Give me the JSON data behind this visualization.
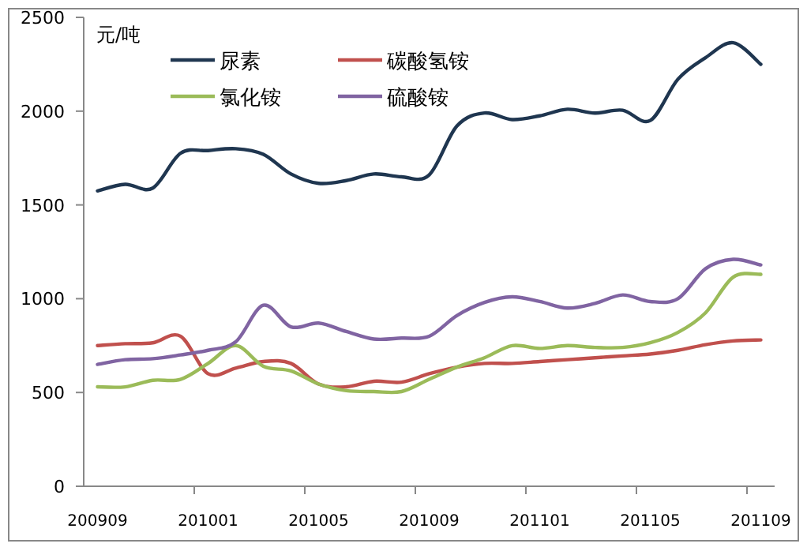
{
  "chart_data": {
    "type": "line",
    "ylabel": "元/吨",
    "categories": [
      "200909",
      null,
      null,
      null,
      "201001",
      null,
      null,
      null,
      "201005",
      null,
      null,
      null,
      "201009",
      null,
      null,
      null,
      "201101",
      null,
      null,
      null,
      "201105",
      null,
      null,
      null,
      "201109"
    ],
    "series": [
      {
        "name": "尿素",
        "color": "#1f3650",
        "values": [
          1575,
          1610,
          1590,
          1775,
          1790,
          1800,
          1770,
          1665,
          1615,
          1630,
          1665,
          1650,
          1660,
          1920,
          1990,
          1955,
          1975,
          2010,
          1990,
          2005,
          1950,
          2170,
          2285,
          2365,
          2250
        ]
      },
      {
        "name": "碳酸氢铵",
        "color": "#c0504d",
        "values": [
          750,
          760,
          765,
          800,
          600,
          630,
          665,
          655,
          545,
          530,
          560,
          555,
          600,
          635,
          655,
          655,
          665,
          675,
          685,
          695,
          705,
          725,
          755,
          775,
          780
        ]
      },
      {
        "name": "氯化铵",
        "color": "#9bbb59",
        "values": [
          530,
          530,
          565,
          570,
          655,
          750,
          640,
          615,
          545,
          510,
          505,
          505,
          570,
          635,
          685,
          750,
          735,
          750,
          740,
          740,
          765,
          820,
          925,
          1115,
          1130
        ]
      },
      {
        "name": "硫酸铵",
        "color": "#8064a2",
        "values": [
          650,
          675,
          680,
          700,
          725,
          770,
          965,
          850,
          870,
          825,
          785,
          790,
          800,
          910,
          980,
          1010,
          985,
          950,
          975,
          1020,
          985,
          1000,
          1160,
          1210,
          1180
        ]
      }
    ],
    "ylim": [
      0,
      2500
    ],
    "yticks": [
      0,
      500,
      1000,
      1500,
      2000,
      2500
    ],
    "legend": "top left",
    "grid": false
  }
}
